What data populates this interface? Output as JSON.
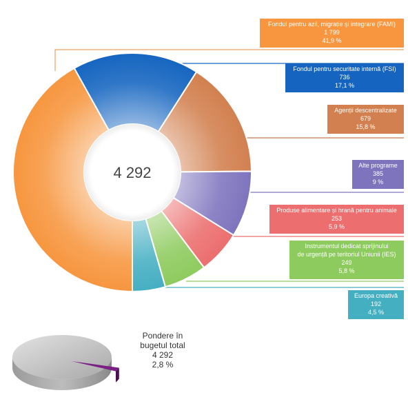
{
  "chart_data": {
    "type": "pie",
    "variant": "donut",
    "center_label": "4 292",
    "slices": [
      {
        "name": "Fondul pentru azil, migrație și integrare (FAMI)",
        "value_label": "1 799",
        "percent_label": "41,9 %",
        "value": 1799,
        "percent": 41.9,
        "color": "#F7963F",
        "leader_color": "#E8A060"
      },
      {
        "name": "Fondul pentru securitate internă (FSI)",
        "value_label": "736",
        "percent_label": "17,1 %",
        "value": 736,
        "percent": 17.1,
        "color": "#1565C0",
        "leader_color": "#1565C0"
      },
      {
        "name": "Agenții descentralizate",
        "value_label": "679",
        "percent_label": "15,8 %",
        "value": 679,
        "percent": 15.8,
        "color": "#D2804F",
        "leader_color": "#C87A4E"
      },
      {
        "name": "Alte programe",
        "value_label": "385",
        "percent_label": "9 %",
        "value": 385,
        "percent": 9.0,
        "color": "#7E74BE",
        "leader_color": "#7E74BE"
      },
      {
        "name": "Produse alimentare și hrană pentru animale",
        "value_label": "253",
        "percent_label": "5,9 %",
        "value": 253,
        "percent": 5.9,
        "color": "#EC6E6E",
        "leader_color": "#EC6E6E"
      },
      {
        "name": "Instrumentul dedicat sprijinului de urgență pe teritoriul Uniunii (IES)",
        "name_lines": [
          "Instrumentul dedicat sprijinului",
          "de urgență pe teritoriul Uniunii (IES)"
        ],
        "value_label": "249",
        "percent_label": "5,8 %",
        "value": 249,
        "percent": 5.8,
        "color": "#8ECB5E",
        "leader_color": "#8ECB5E"
      },
      {
        "name": "Europa creativă",
        "value_label": "192",
        "percent_label": "4,5 %",
        "value": 192,
        "percent": 4.5,
        "color": "#45AFC2",
        "leader_color": "#45AFC2"
      }
    ],
    "share": {
      "lines": [
        "Pondere în",
        "bugetul total",
        "4 292",
        "2,8 %"
      ],
      "percent": 2.8,
      "base_color": "#BDBDBD",
      "highlight_color": "#7A1F86"
    }
  }
}
